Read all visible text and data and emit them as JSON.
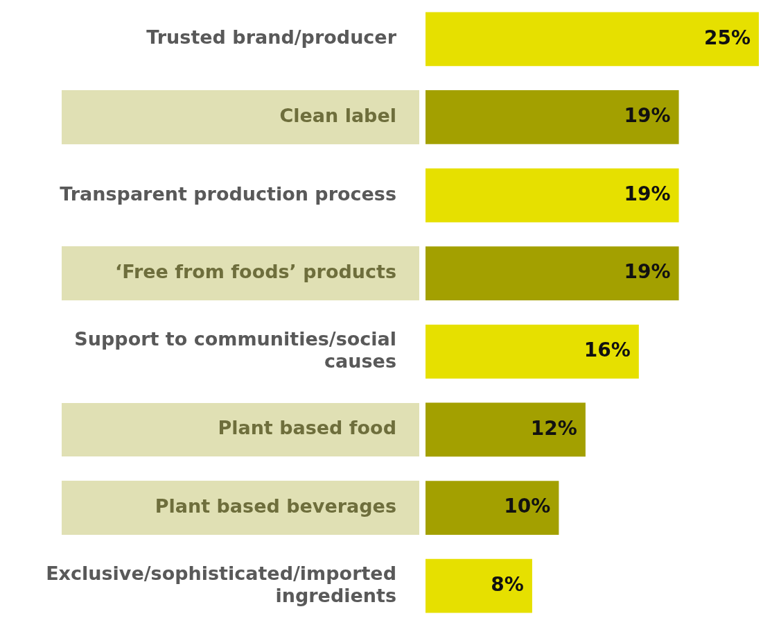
{
  "chart_data": {
    "type": "bar",
    "orientation": "horizontal",
    "categories": [
      "Trusted brand/producer",
      "Clean label",
      "Transparent production process",
      "‘Free from foods’ products",
      "Support to communities/social causes",
      "Plant based food",
      "Plant based beverages",
      "Exclusive/sophisticated/imported ingredients"
    ],
    "values": [
      25,
      19,
      19,
      19,
      16,
      12,
      10,
      8
    ],
    "colors": [
      "#e6e000",
      "#a3a000",
      "#e6e000",
      "#a3a000",
      "#e6e000",
      "#a3a000",
      "#a3a000",
      "#e6e000"
    ],
    "value_labels": [
      "25%",
      "19%",
      "19%",
      "19%",
      "16%",
      "12%",
      "10%",
      "8%"
    ],
    "xlim": [
      0,
      25
    ],
    "legend": false
  }
}
